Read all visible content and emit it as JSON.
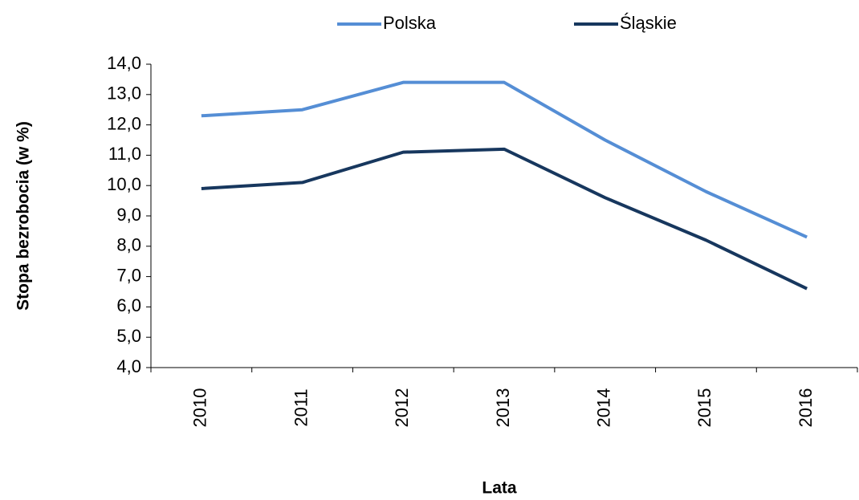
{
  "chart_data": {
    "type": "line",
    "categories": [
      "2010",
      "2011",
      "2012",
      "2013",
      "2014",
      "2015",
      "2016"
    ],
    "series": [
      {
        "name": "Polska",
        "color": "#558ed5",
        "values": [
          12.3,
          12.5,
          13.4,
          13.4,
          11.5,
          9.8,
          8.3
        ]
      },
      {
        "name": "Śląskie",
        "color": "#17375e",
        "values": [
          9.9,
          10.1,
          11.1,
          11.2,
          9.6,
          8.2,
          6.6
        ]
      }
    ],
    "y_label": "Stopa bezrobocia (w %)",
    "x_label": "Lata",
    "ylim": [
      4,
      14
    ],
    "yticks": [
      {
        "value": 4,
        "label": "4,0"
      },
      {
        "value": 5,
        "label": "5,0"
      },
      {
        "value": 6,
        "label": "6,0"
      },
      {
        "value": 7,
        "label": "7,0"
      },
      {
        "value": 8,
        "label": "8,0"
      },
      {
        "value": 9,
        "label": "9,0"
      },
      {
        "value": 10,
        "label": "10,0"
      },
      {
        "value": 11,
        "label": "11,0"
      },
      {
        "value": 12,
        "label": "12,0"
      },
      {
        "value": 13,
        "label": "13,0"
      },
      {
        "value": 14,
        "label": "14,0"
      }
    ],
    "legend": "top"
  }
}
